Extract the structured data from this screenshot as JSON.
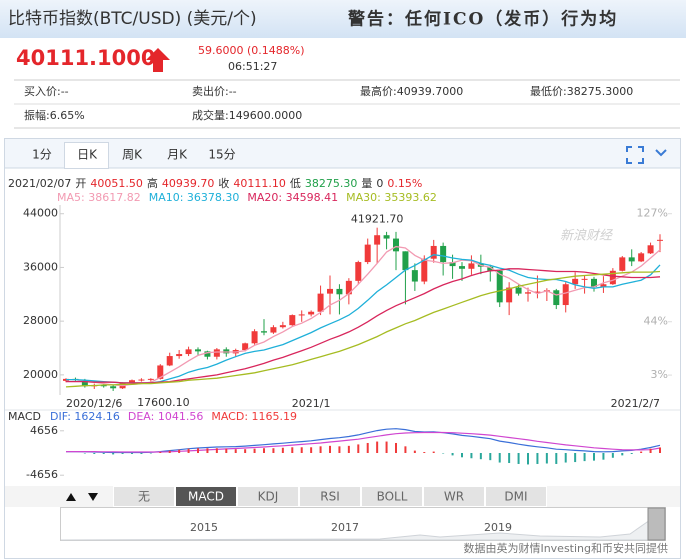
{
  "header": {
    "title": "比特币指数(BTC/USD) (美元/个)",
    "warning": "警告：任何ICO（发币）行为均"
  },
  "quote": {
    "price": "40111.1000",
    "change": "59.6000 (0.1488%)",
    "time": "06:51:27"
  },
  "stats": [
    [
      "买入价:--",
      "卖出价:--",
      "最高价:40939.7000",
      "最低价:38275.3000"
    ],
    [
      "振幅:6.65%",
      "成交量:149600.0000"
    ]
  ],
  "tabs": [
    "1分",
    "日K",
    "周K",
    "月K",
    "15分"
  ],
  "indicator_tabs": [
    "无",
    "MACD",
    "KDJ",
    "RSI",
    "BOLL",
    "WR",
    "DMI"
  ],
  "navigator_years": [
    "2015",
    "2017",
    "2019"
  ],
  "footer": "数据由英为财情Investing和币安共同提供",
  "chart_data": [
    {
      "type": "candlestick",
      "info": [
        "2021/02/07",
        "开",
        "40051.50",
        "高",
        "40939.70",
        "收",
        "40111.10",
        "低",
        "38275.30",
        "量",
        "0",
        "0.15%"
      ],
      "watermark": "新浪财经",
      "max_label": "41921.70",
      "min_label": "17600.10",
      "up_color": "#f03a3a",
      "down_color": "#21a04a",
      "categories": [
        "2020/12/6",
        null,
        null,
        null,
        null,
        null,
        null,
        null,
        null,
        null,
        null,
        null,
        null,
        null,
        null,
        null,
        null,
        null,
        null,
        null,
        null,
        null,
        null,
        null,
        null,
        null,
        "2021/1",
        null,
        null,
        null,
        null,
        null,
        null,
        null,
        null,
        null,
        null,
        null,
        null,
        null,
        null,
        null,
        null,
        null,
        null,
        null,
        null,
        null,
        null,
        null,
        null,
        null,
        null,
        null,
        null,
        null,
        null,
        null,
        null,
        null,
        null,
        null,
        null,
        "2021/2/7"
      ],
      "open": [
        19100,
        19400,
        19200,
        18300,
        18500,
        18300,
        18000,
        18800,
        19200,
        19300,
        19400,
        21400,
        22800,
        23100,
        23800,
        23500,
        22700,
        23800,
        23200,
        23700,
        24700,
        26500,
        26300,
        27100,
        27400,
        28900,
        29000,
        29400,
        32100,
        32800,
        32000,
        34000,
        36800,
        39400,
        40800,
        40300,
        38400,
        35600,
        33900,
        37300,
        39200,
        36800,
        36200,
        35800,
        36600,
        36100,
        35500,
        30800,
        33000,
        32100,
        32300,
        32400,
        32600,
        30400,
        33500,
        34300,
        34300,
        33100,
        33500,
        35500,
        37500,
        36900,
        38100,
        40051.5
      ],
      "high": [
        19500,
        19600,
        19400,
        18700,
        18800,
        18500,
        18900,
        19300,
        19500,
        19500,
        21600,
        23300,
        23700,
        24200,
        24100,
        23600,
        24000,
        24100,
        23900,
        24800,
        26800,
        28300,
        27400,
        27900,
        29000,
        29600,
        29600,
        33300,
        34800,
        33500,
        34400,
        37000,
        40300,
        41921.7,
        41300,
        41300,
        38400,
        36600,
        37800,
        40100,
        39700,
        37900,
        36800,
        37800,
        37900,
        36400,
        35600,
        33800,
        33500,
        33000,
        34800,
        32900,
        32800,
        33800,
        35300,
        34800,
        34600,
        34700,
        35900,
        37700,
        38700,
        38300,
        39700,
        40939.7
      ],
      "low": [
        18900,
        19000,
        18100,
        17900,
        18100,
        17600.1,
        17900,
        18700,
        19000,
        19000,
        19300,
        21300,
        22400,
        22800,
        22800,
        22300,
        22300,
        22700,
        22700,
        23500,
        24500,
        25900,
        26100,
        26900,
        27300,
        27900,
        28700,
        28900,
        29000,
        29000,
        30500,
        33500,
        36500,
        36600,
        38700,
        35600,
        30500,
        32500,
        33500,
        36700,
        34800,
        34300,
        34000,
        34900,
        35000,
        33900,
        30100,
        28900,
        31800,
        30900,
        31400,
        31000,
        29800,
        29300,
        32800,
        32100,
        32400,
        32200,
        33400,
        35400,
        36200,
        36800,
        38000,
        38275.3
      ],
      "close": [
        19400,
        19200,
        18300,
        18500,
        18300,
        18000,
        18800,
        19200,
        19300,
        19400,
        21400,
        22800,
        23100,
        23800,
        23500,
        22700,
        23800,
        23200,
        23700,
        24700,
        26500,
        26300,
        27100,
        27400,
        28900,
        29000,
        29400,
        32100,
        32800,
        32000,
        34000,
        36800,
        39400,
        40800,
        40300,
        38400,
        35600,
        33900,
        37300,
        39200,
        36800,
        36200,
        35800,
        36600,
        36100,
        35500,
        30800,
        33000,
        32100,
        32300,
        32400,
        32600,
        30400,
        33500,
        34300,
        34300,
        33100,
        33500,
        35500,
        37500,
        36900,
        38100,
        39300,
        40111.1
      ],
      "series": [
        {
          "name": "MA5: 38617.82",
          "color": "#f29ab2",
          "values": [
            19300,
            19300,
            19000,
            18900,
            18700,
            18500,
            18400,
            18600,
            18700,
            18900,
            19600,
            20400,
            21200,
            22100,
            22900,
            23300,
            23400,
            23400,
            23400,
            23600,
            24400,
            24900,
            25700,
            26400,
            27200,
            27700,
            28400,
            29300,
            30400,
            31100,
            32100,
            33500,
            35000,
            36600,
            38300,
            39100,
            38900,
            37800,
            37100,
            36900,
            36600,
            36700,
            37100,
            37000,
            36300,
            36000,
            35000,
            34400,
            33500,
            32700,
            32100,
            32500,
            31900,
            32200,
            32600,
            33000,
            33100,
            33700,
            34100,
            34700,
            35300,
            36200,
            37400,
            38617.82
          ]
        },
        {
          "name": "MA10: 36378.30",
          "color": "#1fb0d9",
          "values": [
            19300,
            19300,
            19200,
            19100,
            19000,
            18900,
            18800,
            18800,
            18800,
            18800,
            19000,
            19400,
            19800,
            20400,
            20800,
            21100,
            21600,
            22200,
            22700,
            23200,
            23500,
            23700,
            24100,
            24500,
            25100,
            25700,
            26300,
            27000,
            27600,
            28200,
            28900,
            29900,
            31100,
            32400,
            33400,
            34500,
            35600,
            36300,
            37100,
            37900,
            37700,
            37400,
            37200,
            37100,
            36600,
            36300,
            35900,
            35600,
            35000,
            34500,
            34300,
            34200,
            34200,
            33900,
            33400,
            33100,
            32900,
            33100,
            33100,
            33500,
            33800,
            34100,
            34900,
            36378.3
          ]
        },
        {
          "name": "MA20: 34598.41",
          "color": "#d8265c",
          "values": [
            19000,
            19000,
            19000,
            18900,
            18900,
            18900,
            18800,
            18800,
            18800,
            18800,
            18900,
            19000,
            19200,
            19400,
            19600,
            19800,
            20000,
            20300,
            20600,
            20900,
            21300,
            21700,
            22200,
            22600,
            23100,
            23600,
            24100,
            24700,
            25300,
            25800,
            26400,
            27100,
            27900,
            28800,
            29600,
            30300,
            30900,
            31500,
            32100,
            32800,
            33400,
            33900,
            34300,
            34800,
            35200,
            35500,
            35600,
            35800,
            35800,
            35700,
            35600,
            35500,
            35400,
            35400,
            35400,
            35300,
            35100,
            34900,
            34700,
            34600,
            34500,
            34500,
            34500,
            34598.41
          ]
        },
        {
          "name": "MA30: 35393.62",
          "color": "#a6bc22",
          "values": [
            18200,
            18300,
            18400,
            18400,
            18500,
            18500,
            18600,
            18600,
            18700,
            18700,
            18800,
            18900,
            19000,
            19200,
            19300,
            19400,
            19500,
            19700,
            19900,
            20100,
            20300,
            20600,
            20900,
            21200,
            21500,
            21900,
            22300,
            22700,
            23100,
            23500,
            24000,
            24500,
            25100,
            25700,
            26400,
            27000,
            27600,
            28100,
            28700,
            29300,
            29800,
            30300,
            30800,
            31300,
            31800,
            32200,
            32500,
            32800,
            33200,
            33500,
            33800,
            34100,
            34300,
            34500,
            34700,
            34800,
            34900,
            35000,
            35100,
            35200,
            35300,
            35300,
            35300,
            35393.62
          ]
        }
      ],
      "ylim": [
        17000,
        45300
      ],
      "yticks": [
        20000,
        28000,
        36000,
        44000
      ],
      "y2lim": [
        -12.3,
        133.7
      ],
      "y2ticks": [
        {
          "value": 3,
          "label": "3%"
        },
        {
          "value": 44,
          "label": "44%"
        },
        {
          "value": 127,
          "label": "127%"
        }
      ]
    },
    {
      "type": "macd",
      "title": "MACD",
      "ylim": [
        -6500,
        6500
      ],
      "yticks": [
        4656,
        -4656
      ],
      "series": [
        {
          "name": "DIF: 1624.16",
          "color": "#3a6fd8",
          "kind": "line",
          "values": [
            300,
            300,
            250,
            200,
            150,
            100,
            100,
            100,
            100,
            150,
            300,
            500,
            700,
            900,
            1050,
            1150,
            1250,
            1300,
            1350,
            1450,
            1600,
            1750,
            1900,
            2050,
            2250,
            2400,
            2550,
            2800,
            3050,
            3200,
            3450,
            3800,
            4250,
            4700,
            5000,
            5100,
            4900,
            4500,
            4400,
            4450,
            4250,
            4000,
            3700,
            3500,
            3250,
            3000,
            2500,
            2200,
            1850,
            1550,
            1300,
            1100,
            800,
            700,
            550,
            450,
            300,
            250,
            300,
            450,
            550,
            800,
            1150,
            1624.16
          ]
        },
        {
          "name": "DEA: 1041.56",
          "color": "#d046d0",
          "kind": "line",
          "values": [
            300,
            300,
            300,
            300,
            250,
            250,
            200,
            200,
            200,
            200,
            200,
            250,
            350,
            450,
            550,
            650,
            750,
            850,
            950,
            1050,
            1150,
            1250,
            1400,
            1500,
            1650,
            1800,
            1950,
            2100,
            2300,
            2500,
            2700,
            2900,
            3200,
            3500,
            3800,
            4050,
            4200,
            4250,
            4300,
            4300,
            4300,
            4250,
            4150,
            4050,
            3900,
            3750,
            3500,
            3250,
            3000,
            2750,
            2450,
            2200,
            1950,
            1700,
            1500,
            1300,
            1100,
            950,
            800,
            700,
            650,
            650,
            700,
            1041.56
          ]
        },
        {
          "name": "MACD: 1165.19",
          "color": "#f03a3a",
          "negative_color": "#2aa79b",
          "kind": "bar",
          "values": [
            0,
            0,
            -100,
            -200,
            -200,
            -300,
            -200,
            -200,
            -200,
            -100,
            200,
            500,
            700,
            900,
            1000,
            1000,
            1000,
            900,
            800,
            800,
            900,
            1000,
            1000,
            1100,
            1200,
            1200,
            1200,
            1400,
            1500,
            1400,
            1500,
            1800,
            2100,
            2400,
            2400,
            2100,
            1400,
            500,
            200,
            300,
            -100,
            -500,
            -900,
            -1100,
            -1300,
            -1500,
            -2000,
            -2100,
            -2300,
            -2400,
            -2300,
            -2200,
            -2300,
            -2000,
            -1900,
            -1700,
            -1600,
            -1400,
            -1000,
            -500,
            -200,
            300,
            900,
            1165.19
          ]
        }
      ]
    }
  ]
}
